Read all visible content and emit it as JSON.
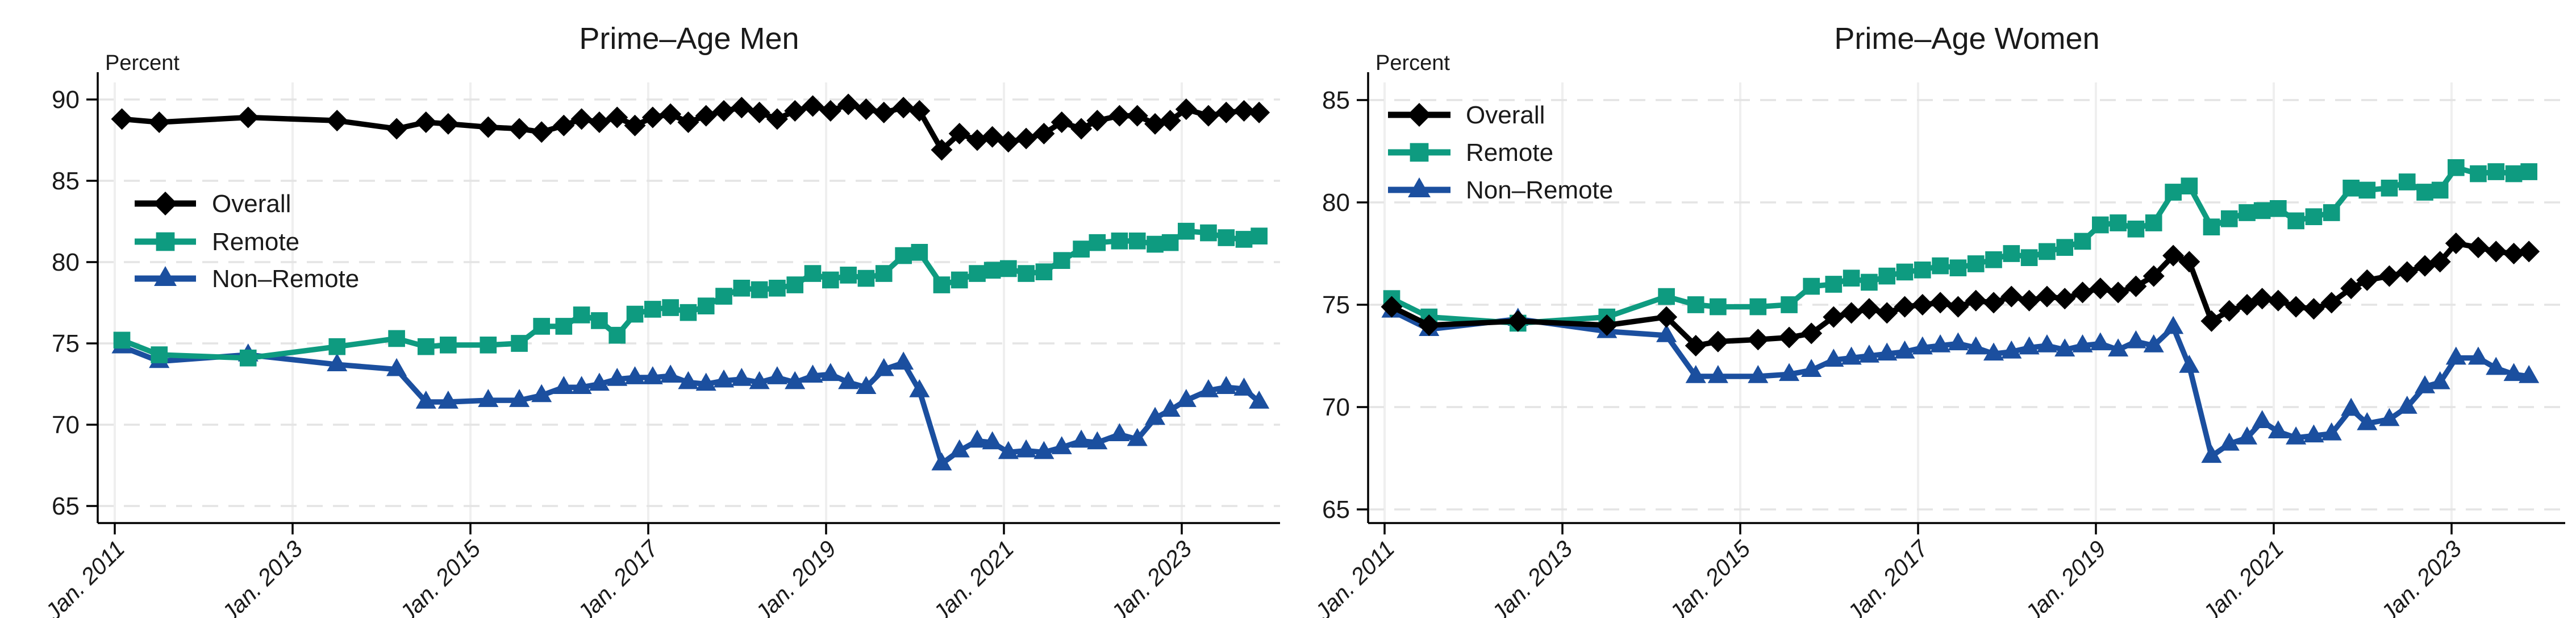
{
  "figure": {
    "kind": "two-panel line chart",
    "background": "#ffffff",
    "accent_colors": {
      "overall": "#000000",
      "remote": "#0e9b80",
      "non_remote": "#1b4f9f"
    }
  },
  "chart_data": [
    {
      "type": "line",
      "title": "Prime–Age Men",
      "ylabel": "Percent",
      "xlabel": "",
      "grid": "on",
      "legend_position": "inside-mid-left",
      "ylim": [
        64,
        91
      ],
      "xlim": [
        2010.8,
        2024.2
      ],
      "yticks": [
        90,
        85,
        80,
        75,
        70,
        65
      ],
      "xticks": [
        2011,
        2013,
        2015,
        2017,
        2019,
        2021,
        2023
      ],
      "x_tick_labels": [
        "Jan. 2011",
        "Jan. 2013",
        "Jan. 2015",
        "Jan. 2017",
        "Jan. 2019",
        "Jan. 2021",
        "Jan. 2023"
      ],
      "x": [
        2011.08,
        2011.5,
        2012.5,
        2013.5,
        2014.17,
        2014.5,
        2014.75,
        2015.2,
        2015.55,
        2015.8,
        2016.05,
        2016.25,
        2016.45,
        2016.65,
        2016.85,
        2017.05,
        2017.25,
        2017.45,
        2017.65,
        2017.85,
        2018.05,
        2018.25,
        2018.45,
        2018.65,
        2018.85,
        2019.05,
        2019.25,
        2019.45,
        2019.65,
        2019.87,
        2020.05,
        2020.3,
        2020.5,
        2020.7,
        2020.87,
        2021.05,
        2021.25,
        2021.45,
        2021.65,
        2021.87,
        2022.05,
        2022.3,
        2022.5,
        2022.7,
        2022.87,
        2023.05,
        2023.3,
        2023.5,
        2023.7,
        2023.87
      ],
      "series": [
        {
          "name": "Overall",
          "marker": "diamond",
          "color": "#000000",
          "values": [
            88.8,
            88.6,
            88.9,
            88.7,
            88.2,
            88.6,
            88.5,
            88.3,
            88.2,
            88.0,
            88.4,
            88.8,
            88.6,
            88.9,
            88.4,
            88.9,
            89.1,
            88.6,
            89.0,
            89.3,
            89.5,
            89.2,
            88.8,
            89.3,
            89.6,
            89.3,
            89.7,
            89.4,
            89.2,
            89.5,
            89.3,
            86.9,
            87.9,
            87.5,
            87.7,
            87.4,
            87.6,
            87.9,
            88.6,
            88.2,
            88.7,
            89.0,
            89.0,
            88.5,
            88.7,
            89.4,
            89.0,
            89.2,
            89.3,
            89.2
          ]
        },
        {
          "name": "Remote",
          "marker": "square",
          "color": "#0e9b80",
          "values": [
            75.2,
            74.3,
            74.1,
            74.8,
            75.3,
            74.8,
            74.9,
            74.9,
            75.0,
            76.05,
            76.05,
            76.75,
            76.4,
            75.5,
            76.8,
            77.1,
            77.2,
            76.9,
            77.3,
            77.9,
            78.4,
            78.3,
            78.4,
            78.6,
            79.3,
            78.9,
            79.2,
            79.0,
            79.3,
            80.4,
            80.6,
            78.6,
            78.9,
            79.3,
            79.5,
            79.6,
            79.3,
            79.4,
            80.1,
            80.8,
            81.2,
            81.3,
            81.3,
            81.1,
            81.2,
            81.9,
            81.8,
            81.5,
            81.4,
            81.6
          ]
        },
        {
          "name": "Non–Remote",
          "marker": "triangle",
          "color": "#1b4f9f",
          "values": [
            74.8,
            73.9,
            74.3,
            73.7,
            73.4,
            71.4,
            71.4,
            71.5,
            71.5,
            71.8,
            72.3,
            72.3,
            72.5,
            72.8,
            72.9,
            72.9,
            73.0,
            72.6,
            72.5,
            72.7,
            72.8,
            72.6,
            72.9,
            72.6,
            73.0,
            73.1,
            72.6,
            72.3,
            73.4,
            73.8,
            72.1,
            67.6,
            68.4,
            69.0,
            68.9,
            68.3,
            68.4,
            68.3,
            68.6,
            69.0,
            68.9,
            69.4,
            69.1,
            70.4,
            70.9,
            71.5,
            72.1,
            72.3,
            72.2,
            71.4
          ]
        }
      ]
    },
    {
      "type": "line",
      "title": "Prime–Age Women",
      "ylabel": "Percent",
      "xlabel": "",
      "grid": "on",
      "legend_position": "inside-top-left",
      "ylim": [
        64,
        86
      ],
      "xlim": [
        2010.8,
        2024.2
      ],
      "yticks": [
        85,
        80,
        75,
        70,
        65
      ],
      "xticks": [
        2011,
        2013,
        2015,
        2017,
        2019,
        2021,
        2023
      ],
      "x_tick_labels": [
        "Jan. 2011",
        "Jan. 2013",
        "Jan. 2015",
        "Jan. 2017",
        "Jan. 2019",
        "Jan. 2021",
        "Jan. 2023"
      ],
      "x": [
        2011.08,
        2011.5,
        2012.5,
        2013.5,
        2014.17,
        2014.5,
        2014.75,
        2015.2,
        2015.55,
        2015.8,
        2016.05,
        2016.25,
        2016.45,
        2016.65,
        2016.85,
        2017.05,
        2017.25,
        2017.45,
        2017.65,
        2017.85,
        2018.05,
        2018.25,
        2018.45,
        2018.65,
        2018.85,
        2019.05,
        2019.25,
        2019.45,
        2019.65,
        2019.87,
        2020.05,
        2020.3,
        2020.5,
        2020.7,
        2020.87,
        2021.05,
        2021.25,
        2021.45,
        2021.65,
        2021.87,
        2022.05,
        2022.3,
        2022.5,
        2022.7,
        2022.87,
        2023.05,
        2023.3,
        2023.5,
        2023.7,
        2023.87
      ],
      "series": [
        {
          "name": "Overall",
          "marker": "diamond",
          "color": "#000000",
          "values": [
            74.9,
            74.0,
            74.2,
            74.0,
            74.4,
            73.0,
            73.2,
            73.3,
            73.4,
            73.6,
            74.4,
            74.6,
            74.8,
            74.6,
            74.9,
            75.0,
            75.1,
            74.9,
            75.2,
            75.1,
            75.4,
            75.2,
            75.4,
            75.3,
            75.6,
            75.8,
            75.6,
            75.9,
            76.4,
            77.4,
            77.1,
            74.2,
            74.7,
            75.0,
            75.3,
            75.2,
            74.9,
            74.8,
            75.1,
            75.8,
            76.2,
            76.4,
            76.6,
            76.9,
            77.1,
            78.0,
            77.8,
            77.6,
            77.5,
            77.6
          ]
        },
        {
          "name": "Remote",
          "marker": "square",
          "color": "#0e9b80",
          "values": [
            75.3,
            74.4,
            74.1,
            74.4,
            75.4,
            75.0,
            74.9,
            74.9,
            75.0,
            75.9,
            76.0,
            76.3,
            76.1,
            76.4,
            76.6,
            76.7,
            76.9,
            76.8,
            77.0,
            77.2,
            77.5,
            77.3,
            77.6,
            77.8,
            78.1,
            78.9,
            79.0,
            78.7,
            79.0,
            80.5,
            80.8,
            78.8,
            79.2,
            79.5,
            79.6,
            79.7,
            79.1,
            79.3,
            79.5,
            80.7,
            80.6,
            80.7,
            81.0,
            80.5,
            80.6,
            81.7,
            81.4,
            81.5,
            81.4,
            81.5
          ]
        },
        {
          "name": "Non–Remote",
          "marker": "triangle",
          "color": "#1b4f9f",
          "values": [
            74.7,
            73.8,
            74.3,
            73.7,
            73.5,
            71.5,
            71.5,
            71.5,
            71.6,
            71.8,
            72.3,
            72.4,
            72.5,
            72.6,
            72.7,
            72.9,
            73.0,
            73.1,
            72.9,
            72.6,
            72.7,
            72.9,
            73.0,
            72.8,
            73.0,
            73.1,
            72.8,
            73.2,
            73.0,
            73.9,
            72.0,
            67.6,
            68.2,
            68.5,
            69.3,
            68.8,
            68.5,
            68.6,
            68.7,
            69.9,
            69.2,
            69.4,
            70.0,
            71.0,
            71.2,
            72.4,
            72.4,
            71.9,
            71.6,
            71.5
          ]
        }
      ]
    }
  ]
}
